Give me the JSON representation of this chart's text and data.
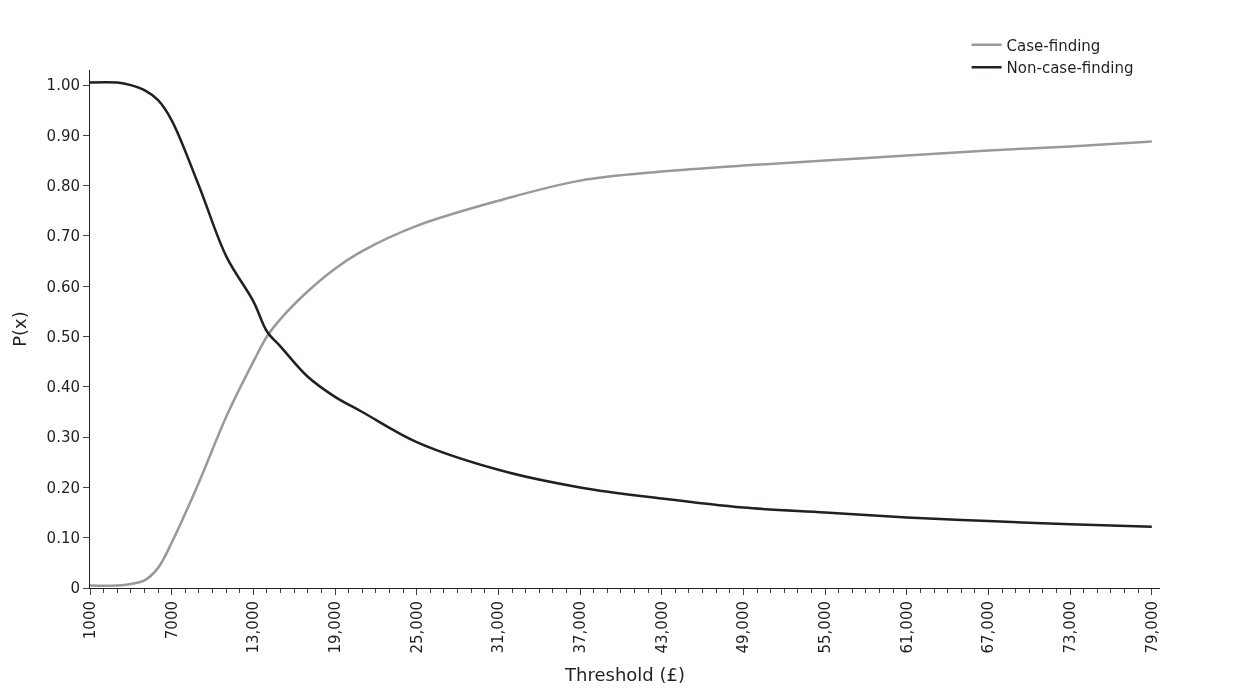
{
  "chart_data": {
    "type": "line",
    "xlabel": "Threshold (£)",
    "ylabel": "P(x)",
    "xlim": [
      1000,
      79600
    ],
    "ylim": [
      0,
      1.03
    ],
    "xticks": [
      1000,
      7000,
      {
        "value": 13000,
        "label": "13,000"
      },
      {
        "value": 19000,
        "label": "19,000"
      },
      {
        "value": 25000,
        "label": "25,000"
      },
      {
        "value": 31000,
        "label": "31,000"
      },
      {
        "value": 37000,
        "label": "37,000"
      },
      {
        "value": 43000,
        "label": "43,000"
      },
      {
        "value": 49000,
        "label": "49,000"
      },
      {
        "value": 55000,
        "label": "55,000"
      },
      {
        "value": 61000,
        "label": "61,000"
      },
      {
        "value": 67000,
        "label": "67,000"
      },
      {
        "value": 73000,
        "label": "73,000"
      },
      {
        "value": 79000,
        "label": "79,000"
      }
    ],
    "yticks": [
      0,
      {
        "value": 0.1,
        "label": "0.10"
      },
      {
        "value": 0.2,
        "label": "0.20"
      },
      {
        "value": 0.3,
        "label": "0.30"
      },
      {
        "value": 0.4,
        "label": "0.40"
      },
      {
        "value": 0.5,
        "label": "0.50"
      },
      {
        "value": 0.6,
        "label": "0.60"
      },
      {
        "value": 0.7,
        "label": "0.70"
      },
      {
        "value": 0.8,
        "label": "0.80"
      },
      {
        "value": 0.9,
        "label": "0.90"
      },
      {
        "value": 1.0,
        "label": "1.00"
      }
    ],
    "x": [
      1000,
      3000,
      4000,
      5000,
      6000,
      7000,
      9000,
      11000,
      13000,
      14000,
      15000,
      17000,
      19000,
      21000,
      25000,
      31000,
      37000,
      43000,
      49000,
      55000,
      61000,
      67000,
      73000,
      79000
    ],
    "series": [
      {
        "name": "Case-finding",
        "color": "#999999",
        "values": [
          0.005,
          0.005,
          0.008,
          0.015,
          0.04,
          0.09,
          0.21,
          0.34,
          0.45,
          0.5,
          0.535,
          0.59,
          0.635,
          0.67,
          0.72,
          0.77,
          0.81,
          0.828,
          0.84,
          0.85,
          0.86,
          0.87,
          0.878,
          0.888
        ]
      },
      {
        "name": "Non-case-finding",
        "color": "#231f20",
        "values": [
          1.005,
          1.005,
          1.0,
          0.99,
          0.97,
          0.93,
          0.8,
          0.66,
          0.57,
          0.51,
          0.48,
          0.42,
          0.38,
          0.35,
          0.29,
          0.235,
          0.2,
          0.178,
          0.16,
          0.15,
          0.14,
          0.133,
          0.127,
          0.122
        ]
      }
    ],
    "legend": "top right",
    "marker": "none",
    "line_style": "solid"
  }
}
